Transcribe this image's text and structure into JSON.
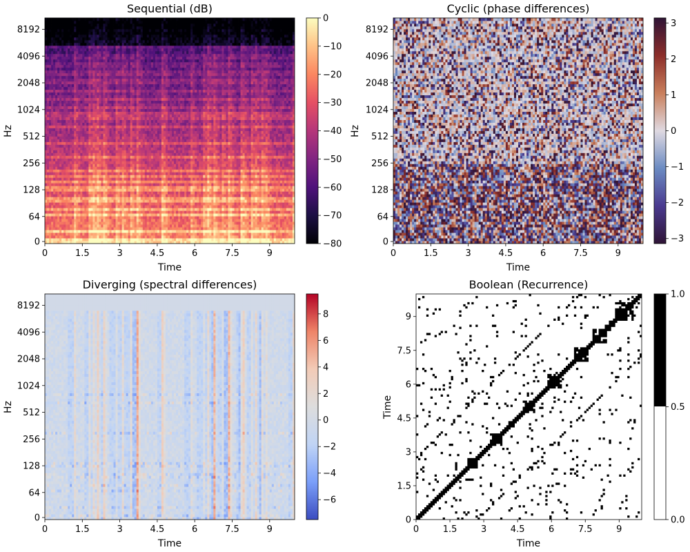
{
  "chart_data": [
    {
      "type": "heatmap",
      "title": "Sequential (dB)",
      "xlabel": "Time",
      "ylabel": "Hz",
      "x_ticks": [
        "0",
        "1.5",
        "3",
        "4.5",
        "6",
        "7.5",
        "9"
      ],
      "x_range": [
        0,
        10.0
      ],
      "y_scale": "log2",
      "y_ticks": [
        "0",
        "64",
        "128",
        "256",
        "512",
        "1024",
        "2048",
        "4096",
        "8192"
      ],
      "colormap": "magma",
      "colorbar_ticks": [
        "0",
        "−10",
        "−20",
        "−30",
        "−40",
        "−50",
        "−60",
        "−70",
        "−80"
      ],
      "colorbar_range": [
        -80,
        0
      ],
      "colormap_stops": [
        "#000004",
        "#1c1044",
        "#4f127b",
        "#812581",
        "#b5367a",
        "#e55064",
        "#fb8761",
        "#fec287",
        "#fcfdbf"
      ]
    },
    {
      "type": "heatmap",
      "title": "Cyclic (phase differences)",
      "xlabel": "Time",
      "ylabel": "Hz",
      "x_ticks": [
        "0",
        "1.5",
        "3",
        "4.5",
        "6",
        "7.5",
        "9"
      ],
      "x_range": [
        0,
        10.0
      ],
      "y_scale": "log2",
      "y_ticks": [
        "0",
        "64",
        "128",
        "256",
        "512",
        "1024",
        "2048",
        "4096",
        "8192"
      ],
      "colormap": "twilight_shifted",
      "colorbar_ticks": [
        "3",
        "2",
        "1",
        "0",
        "−1",
        "−2",
        "−3"
      ],
      "colorbar_range": [
        -3.14,
        3.14
      ],
      "colormap_stops": [
        "#2f1436",
        "#4a3a8f",
        "#6b8bc2",
        "#dfd9e1",
        "#c97f5c",
        "#8c2e2a",
        "#2f1436"
      ]
    },
    {
      "type": "heatmap",
      "title": "Diverging (spectral differences)",
      "xlabel": "Time",
      "ylabel": "Hz",
      "x_ticks": [
        "0",
        "1.5",
        "3",
        "4.5",
        "6",
        "7.5",
        "9"
      ],
      "x_range": [
        0,
        10.0
      ],
      "y_scale": "log2",
      "y_ticks": [
        "0",
        "64",
        "128",
        "256",
        "512",
        "1024",
        "2048",
        "4096",
        "8192"
      ],
      "colormap": "coolwarm",
      "colorbar_ticks": [
        "8",
        "6",
        "4",
        "2",
        "0",
        "−2",
        "−4",
        "−6"
      ],
      "colorbar_range": [
        -7.5,
        9.5
      ],
      "colormap_stops": [
        "#3b4cc0",
        "#7b9ff9",
        "#c0d4f5",
        "#dddddd",
        "#f2cbb7",
        "#ee8468",
        "#b40426"
      ]
    },
    {
      "type": "heatmap",
      "title": "Boolean (Recurrence)",
      "xlabel": "Time",
      "ylabel": "Time",
      "x_ticks": [
        "0",
        "1.5",
        "3",
        "4.5",
        "6",
        "7.5",
        "9"
      ],
      "x_range": [
        0,
        10.0
      ],
      "y_ticks": [
        "0",
        "1.5",
        "3",
        "4.5",
        "6",
        "7.5",
        "9"
      ],
      "y_range": [
        0,
        10.0
      ],
      "colormap": "binary",
      "colorbar_ticks": [
        "1.0",
        "0.5",
        "0.0"
      ],
      "colorbar_range": [
        0,
        1
      ],
      "colormap_stops": [
        "#ffffff",
        "#000000"
      ]
    }
  ]
}
